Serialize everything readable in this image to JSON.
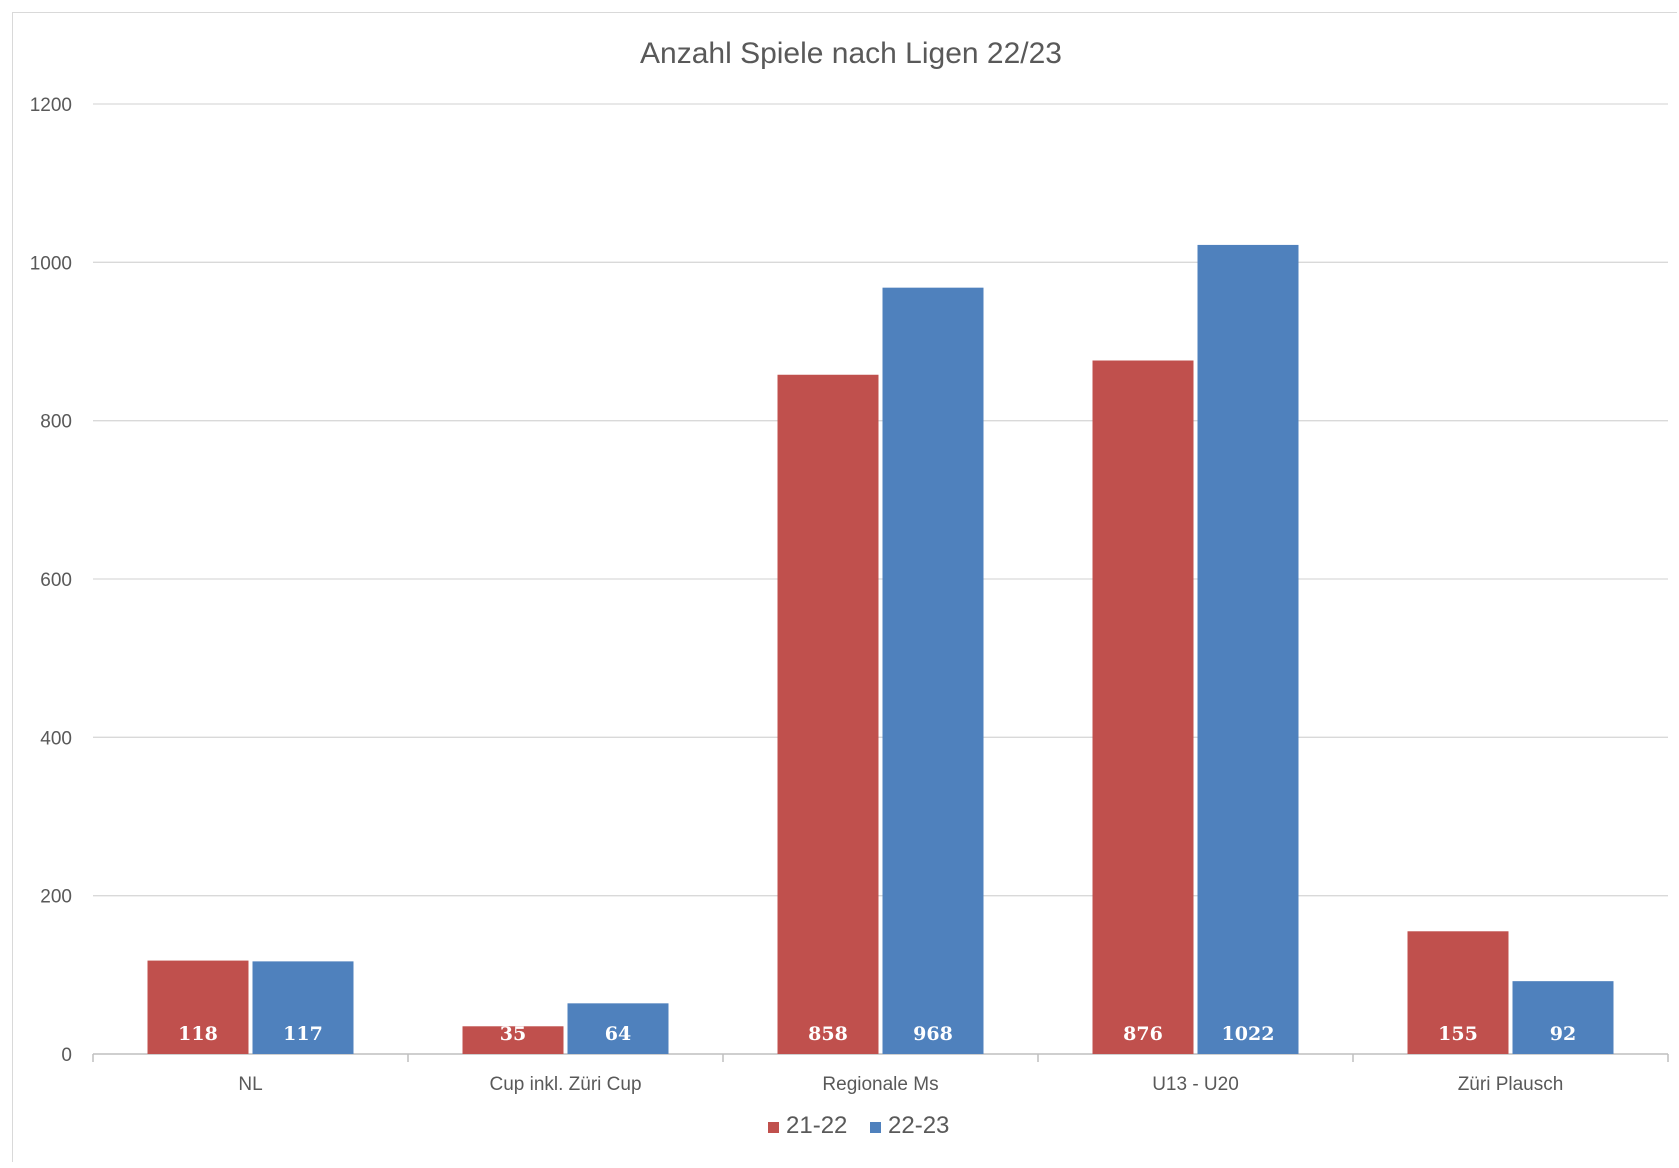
{
  "chart_data": {
    "type": "bar",
    "title": "Anzahl Spiele nach Ligen 22/23",
    "categories": [
      "NL",
      "Cup inkl. Züri Cup",
      "Regionale Ms",
      "U13 - U20",
      "Züri Plausch"
    ],
    "series": [
      {
        "name": "21-22",
        "values": [
          118,
          35,
          858,
          876,
          155
        ],
        "color": "#c0504d"
      },
      {
        "name": "22-23",
        "values": [
          117,
          64,
          968,
          1022,
          92
        ],
        "color": "#4f81bd"
      }
    ],
    "ylim": [
      0,
      1200
    ],
    "yticks": [
      0,
      200,
      400,
      600,
      800,
      1000,
      1200
    ],
    "grid": true,
    "legend": "bottom",
    "data_labels": "inside-base"
  }
}
